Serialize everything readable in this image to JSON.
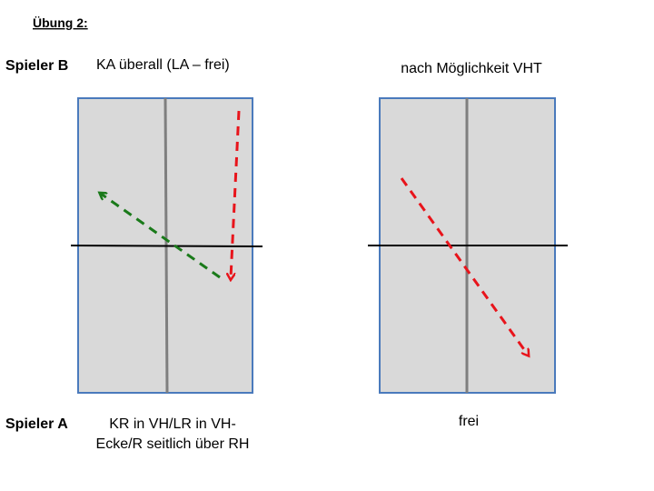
{
  "header": {
    "title": "Übung 2:"
  },
  "player_b": {
    "label": "Spieler B",
    "left_note": "KA überall (LA – frei)",
    "right_note": "nach Möglichkeit VHT"
  },
  "player_a": {
    "label": "Spieler A",
    "left_note": [
      "KR in VH/LR in VH-",
      "Ecke/R seitlich über RH"
    ],
    "right_note": "frei"
  }
}
